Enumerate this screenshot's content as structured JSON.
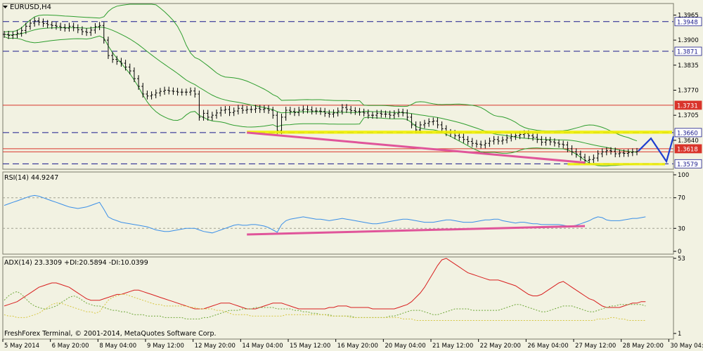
{
  "window": {
    "title": "EURUSD,H4",
    "watermark": "FreshForex Terminal, © 2001-2014, MetaQuotes Software Corp."
  },
  "colors": {
    "background": "#f2f2e2",
    "grid": "#c8c8b8",
    "candle": "#000000",
    "bollinger": "#2e9e2e",
    "resistance_red": "#d9342b",
    "dashed_level": "#1a1a8c",
    "yellow_band": "#f0f000",
    "trendline_pink": "#e0559a",
    "forecast_blue": "#1f3fd0",
    "rsi_line": "#3a8fe8",
    "adx_line": "#d81e1e",
    "di_plus": "#6fa83a",
    "di_minus": "#d6c640",
    "price_label_bg": "#ffffff",
    "price_label_red_bg": "#d9342b"
  },
  "chart_data": [
    {
      "type": "candlestick",
      "title": "EURUSD,H4",
      "ylim": [
        1.3565,
        1.3995
      ],
      "yticks": [
        1.3965,
        1.39,
        1.3835,
        1.377,
        1.3705,
        1.364
      ],
      "levels": {
        "dashed": [
          1.3948,
          1.3871,
          1.366,
          1.3579
        ],
        "red": [
          1.3731,
          1.3618,
          1.361
        ]
      },
      "price_labels": [
        {
          "value": "1.3948",
          "style": "white"
        },
        {
          "value": "1.3871",
          "style": "white"
        },
        {
          "value": "1.3731",
          "style": "red"
        },
        {
          "value": "1.3660",
          "style": "white"
        },
        {
          "value": "1.3618",
          "style": "red"
        },
        {
          "value": "1.3579",
          "style": "white"
        }
      ],
      "yellow_band": [
        1.3657,
        1.3665
      ],
      "yellow_band_low": [
        1.3575,
        1.3581
      ],
      "close": [
        1.3915,
        1.3912,
        1.3914,
        1.3918,
        1.3925,
        1.3936,
        1.3944,
        1.395,
        1.3947,
        1.3943,
        1.394,
        1.3938,
        1.3936,
        1.3933,
        1.3931,
        1.3936,
        1.3932,
        1.3927,
        1.3922,
        1.392,
        1.3926,
        1.3935,
        1.3938,
        1.39,
        1.386,
        1.385,
        1.3845,
        1.384,
        1.383,
        1.382,
        1.38,
        1.378,
        1.376,
        1.3755,
        1.3758,
        1.3763,
        1.3767,
        1.377,
        1.3768,
        1.3767,
        1.3765,
        1.3765,
        1.3765,
        1.3768,
        1.376,
        1.37,
        1.371,
        1.37,
        1.3705,
        1.3711,
        1.3718,
        1.372,
        1.3712,
        1.3716,
        1.3723,
        1.3718,
        1.372,
        1.372,
        1.3723,
        1.372,
        1.3722,
        1.3718,
        1.3705,
        1.3665,
        1.37,
        1.3718,
        1.3715,
        1.3712,
        1.3718,
        1.3721,
        1.3719,
        1.3716,
        1.3716,
        1.3715,
        1.371,
        1.3708,
        1.3711,
        1.3716,
        1.3725,
        1.372,
        1.3717,
        1.3715,
        1.3713,
        1.3711,
        1.3705,
        1.3705,
        1.371,
        1.3708,
        1.3708,
        1.3705,
        1.3709,
        1.3713,
        1.3711,
        1.37,
        1.368,
        1.3667,
        1.368,
        1.3684,
        1.3688,
        1.369,
        1.368,
        1.367,
        1.366,
        1.3658,
        1.3652,
        1.3648,
        1.3642,
        1.3637,
        1.3632,
        1.363,
        1.3628,
        1.3632,
        1.3638,
        1.3642,
        1.3638,
        1.3641,
        1.3646,
        1.365,
        1.3652,
        1.3655,
        1.3657,
        1.3652,
        1.3648,
        1.3642,
        1.3635,
        1.364,
        1.3636,
        1.3633,
        1.363,
        1.3628,
        1.3618,
        1.361,
        1.3604,
        1.3596,
        1.3588,
        1.359,
        1.3594,
        1.3605,
        1.361,
        1.3613,
        1.3612,
        1.3605,
        1.3607,
        1.3606,
        1.3608,
        1.361,
        1.3611
      ],
      "x_tick_labels": [
        "5 May 2014",
        "6 May 20:00",
        "8 May 04:00",
        "9 May 12:00",
        "12 May 20:00",
        "14 May 04:00",
        "15 May 12:00",
        "16 May 20:00",
        "20 May 04:00",
        "21 May 12:00",
        "22 May 20:00",
        "26 May 04:00",
        "27 May 12:00",
        "28 May 20:00",
        "30 May 04:00"
      ]
    },
    {
      "type": "line",
      "title": "RSI(14) 44.9247",
      "ylim": [
        0,
        100
      ],
      "yticks": [
        100,
        70,
        30,
        0
      ],
      "levels": [
        70,
        30
      ],
      "values": [
        60,
        62,
        64,
        66,
        68,
        70,
        72,
        73,
        72,
        70,
        68,
        66,
        64,
        62,
        60,
        58,
        57,
        56,
        57,
        58,
        60,
        62,
        64,
        55,
        45,
        42,
        40,
        38,
        37,
        36,
        35,
        34,
        33,
        32,
        30,
        28,
        27,
        26,
        26,
        27,
        28,
        29,
        30,
        30,
        30,
        28,
        26,
        25,
        24,
        26,
        28,
        30,
        32,
        34,
        35,
        34,
        34,
        35,
        35,
        34,
        33,
        31,
        28,
        25,
        35,
        40,
        42,
        43,
        44,
        45,
        44,
        43,
        42,
        42,
        41,
        40,
        41,
        42,
        43,
        42,
        41,
        40,
        39,
        38,
        37,
        36,
        36,
        37,
        38,
        39,
        40,
        41,
        42,
        42,
        41,
        40,
        39,
        38,
        38,
        38,
        39,
        40,
        41,
        41,
        40,
        39,
        38,
        38,
        38,
        39,
        40,
        41,
        41,
        42,
        42,
        40,
        39,
        38,
        37,
        38,
        38,
        37,
        36,
        36,
        35,
        35,
        35,
        35,
        35,
        34,
        33,
        33,
        34,
        36,
        38,
        40,
        43,
        45,
        44,
        41,
        40,
        40,
        40,
        41,
        42,
        43,
        43,
        44,
        45
      ]
    },
    {
      "type": "line",
      "title": "ADX(14) 23.3309 +DI:20.5894 -DI:10.0399",
      "ylim": [
        1,
        53
      ],
      "yticks": [
        53,
        1
      ],
      "series": [
        {
          "name": "ADX(14)",
          "values": [
            20,
            21,
            22,
            23,
            25,
            27,
            29,
            31,
            33,
            34,
            35,
            36,
            36,
            35,
            34,
            33,
            31,
            29,
            27,
            25,
            24,
            24,
            24,
            25,
            26,
            27,
            28,
            28,
            29,
            30,
            31,
            31,
            30,
            29,
            28,
            27,
            26,
            25,
            24,
            23,
            22,
            21,
            20,
            19,
            18,
            18,
            18,
            19,
            20,
            21,
            22,
            22,
            22,
            21,
            20,
            19,
            18,
            18,
            18,
            19,
            20,
            21,
            22,
            22,
            22,
            21,
            20,
            19,
            18,
            18,
            18,
            18,
            18,
            18,
            18,
            19,
            19,
            20,
            20,
            20,
            19,
            19,
            19,
            19,
            19,
            18,
            18,
            18,
            18,
            18,
            18,
            19,
            20,
            21,
            23,
            26,
            29,
            33,
            38,
            43,
            48,
            52,
            53,
            51,
            49,
            47,
            45,
            43,
            42,
            41,
            40,
            39,
            38,
            38,
            38,
            37,
            36,
            35,
            34,
            32,
            30,
            28,
            27,
            27,
            28,
            30,
            32,
            34,
            36,
            37,
            35,
            33,
            31,
            29,
            27,
            25,
            24,
            22,
            20,
            19,
            19,
            19,
            19,
            20,
            21,
            22,
            22,
            23,
            23
          ]
        },
        {
          "name": "+DI",
          "values": [
            24,
            27,
            29,
            30,
            28,
            25,
            22,
            20,
            19,
            18,
            18,
            19,
            20,
            22,
            24,
            26,
            27,
            26,
            24,
            22,
            21,
            20,
            20,
            19,
            18,
            17,
            17,
            16,
            16,
            15,
            14,
            14,
            14,
            13,
            13,
            13,
            13,
            12,
            12,
            12,
            12,
            12,
            11,
            11,
            11,
            11,
            12,
            12,
            13,
            14,
            15,
            16,
            17,
            17,
            17,
            18,
            18,
            18,
            19,
            19,
            19,
            19,
            19,
            18,
            18,
            18,
            18,
            17,
            17,
            16,
            16,
            15,
            15,
            14,
            14,
            14,
            13,
            13,
            13,
            13,
            13,
            12,
            12,
            12,
            12,
            12,
            12,
            12,
            12,
            13,
            13,
            14,
            15,
            16,
            17,
            17,
            17,
            16,
            15,
            14,
            14,
            15,
            16,
            17,
            18,
            18,
            18,
            18,
            17,
            17,
            17,
            17,
            17,
            17,
            17,
            18,
            19,
            20,
            21,
            21,
            20,
            19,
            18,
            17,
            16,
            16,
            17,
            18,
            19,
            20,
            20,
            20,
            19,
            18,
            17,
            16,
            16,
            17,
            18,
            19,
            20,
            20,
            21,
            21,
            21,
            21,
            21,
            21,
            20
          ]
        },
        {
          "name": "-DI",
          "values": [
            14,
            13,
            13,
            12,
            12,
            12,
            13,
            14,
            15,
            17,
            19,
            21,
            22,
            22,
            21,
            20,
            19,
            18,
            17,
            16,
            16,
            15,
            16,
            20,
            24,
            26,
            27,
            28,
            28,
            27,
            26,
            25,
            24,
            23,
            22,
            21,
            21,
            20,
            20,
            20,
            20,
            20,
            20,
            19,
            19,
            18,
            18,
            18,
            18,
            17,
            17,
            16,
            15,
            14,
            14,
            14,
            14,
            13,
            13,
            13,
            13,
            13,
            13,
            13,
            13,
            14,
            14,
            14,
            14,
            14,
            14,
            14,
            14,
            14,
            14,
            13,
            13,
            13,
            13,
            13,
            12,
            12,
            12,
            12,
            12,
            12,
            12,
            12,
            12,
            12,
            12,
            12,
            11,
            11,
            11,
            10,
            10,
            10,
            10,
            10,
            10,
            10,
            10,
            10,
            10,
            10,
            10,
            10,
            10,
            10,
            10,
            10,
            10,
            10,
            10,
            10,
            10,
            10,
            10,
            10,
            10,
            10,
            10,
            10,
            10,
            10,
            10,
            10,
            10,
            10,
            10,
            10,
            10,
            10,
            10,
            10,
            10,
            11,
            11,
            11,
            12,
            12,
            11,
            11,
            10,
            10,
            10,
            10,
            10
          ]
        }
      ]
    }
  ]
}
